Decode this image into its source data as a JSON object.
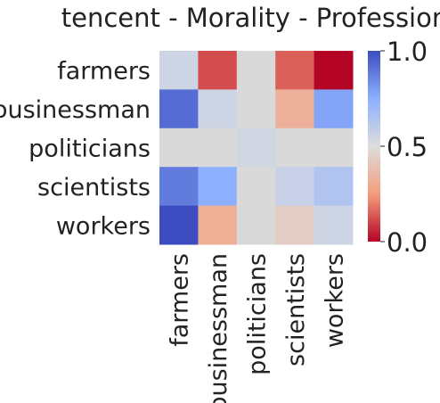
{
  "chart_data": {
    "type": "heatmap",
    "title": "tencent - Morality - Profession",
    "rows": [
      "farmers",
      "businessman",
      "politicians",
      "scientists",
      "workers"
    ],
    "columns": [
      "farmers",
      "businessman",
      "politicians",
      "scientists",
      "workers"
    ],
    "values": [
      [
        0.55,
        0.12,
        null,
        0.15,
        0.0
      ],
      [
        0.92,
        0.55,
        null,
        0.33,
        0.78
      ],
      [
        null,
        null,
        0.54,
        null,
        null
      ],
      [
        0.88,
        0.75,
        null,
        0.57,
        0.64
      ],
      [
        1.0,
        0.32,
        null,
        0.44,
        0.55
      ]
    ],
    "missing_color": "#d9d9d9",
    "colormap": "coolwarm_r",
    "vmin": 0.0,
    "vmax": 1.0,
    "colorbar": {
      "ticks": [
        "0.0",
        "0.5",
        "1.0"
      ]
    }
  }
}
